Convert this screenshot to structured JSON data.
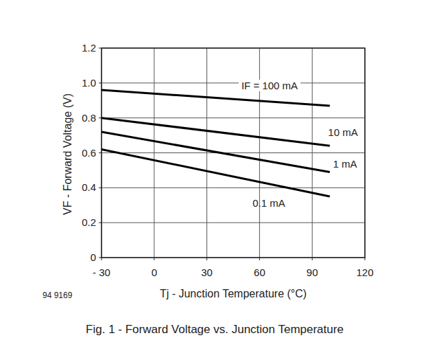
{
  "chart_data": {
    "type": "line",
    "title": "Fig. 1 - Forward Voltage vs. Junction Temperature",
    "x_label": "Tj - Junction Temperature (°C)",
    "y_label": "VF - Forward Voltage (V)",
    "annotations": [
      "94 9169"
    ],
    "x": [
      -30,
      100
    ],
    "series": [
      {
        "name": "IF = 100 mA",
        "color": "#000000",
        "values": [
          0.96,
          0.87
        ]
      },
      {
        "name": "10 mA",
        "color": "#000000",
        "values": [
          0.8,
          0.64
        ]
      },
      {
        "name": "1 mA",
        "color": "#000000",
        "values": [
          0.72,
          0.49
        ]
      },
      {
        "name": "0.1 mA",
        "color": "#000000",
        "values": [
          0.62,
          0.35
        ]
      }
    ],
    "xlim": [
      -30,
      120
    ],
    "xticks": [
      {
        "value": -30,
        "label": "- 30"
      },
      0,
      30,
      60,
      90,
      120
    ],
    "ylim": [
      0,
      1.2
    ],
    "yticks": [
      0,
      0.2,
      0.4,
      0.6,
      0.8,
      {
        "value": 1,
        "label": "1.0"
      },
      1.2
    ],
    "grid": true
  }
}
